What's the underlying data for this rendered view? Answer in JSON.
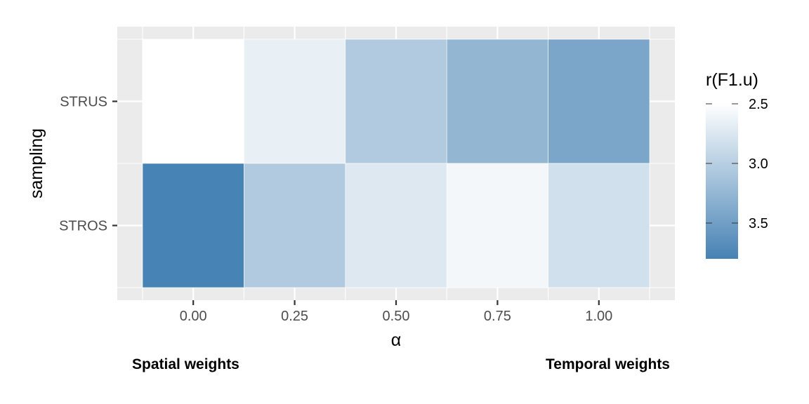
{
  "chart_data": {
    "type": "heatmap",
    "xlabel": "α",
    "ylabel": "sampling",
    "x_categories": [
      "0.00",
      "0.25",
      "0.50",
      "0.75",
      "1.00"
    ],
    "y_categories": [
      "STRUS",
      "STROS"
    ],
    "values": [
      [
        2.5,
        2.66,
        3.05,
        3.26,
        3.43
      ],
      [
        3.79,
        3.05,
        2.74,
        2.58,
        2.82
      ]
    ],
    "legend": {
      "title": "r(F1.u)",
      "ticks": [
        "2.5",
        "3.0",
        "3.5"
      ],
      "tick_values": [
        2.5,
        3.0,
        3.5
      ],
      "range": [
        2.5,
        3.8
      ],
      "low_color": "#ffffff",
      "high_color": "#4682b4",
      "reversed": true
    },
    "annotations": {
      "left": "Spatial weights",
      "right": "Temporal weights"
    },
    "grid": true,
    "panel_background": "#ebebeb",
    "grid_color": "#ffffff"
  }
}
